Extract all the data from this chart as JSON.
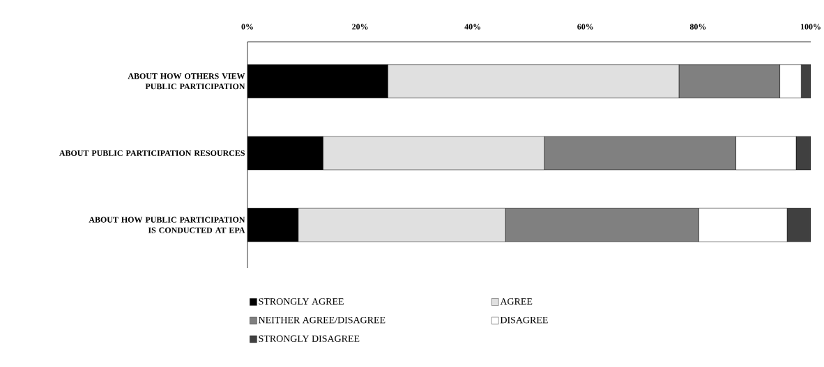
{
  "chart_data": {
    "type": "bar",
    "orientation": "horizontal",
    "stacked": true,
    "categories": [
      "ABOUT HOW OTHERS VIEW PUBLIC PARTICIPATION",
      "ABOUT PUBLIC PARTICIPATION RESOURCES",
      "ABOUT HOW PUBLIC PARTICIPATION IS CONDUCTED AT EPA"
    ],
    "series": [
      {
        "name": "STRONGLY AGREE",
        "color": "#000000",
        "values": [
          24.9,
          13.4,
          9.0
        ]
      },
      {
        "name": "AGREE",
        "color": "#e0e0e0",
        "values": [
          51.7,
          39.3,
          36.8
        ]
      },
      {
        "name": "NEITHER AGREE/DISAGREE",
        "color": "#808080",
        "values": [
          17.9,
          34.0,
          34.3
        ]
      },
      {
        "name": "DISAGREE",
        "color": "#ffffff",
        "values": [
          3.8,
          10.7,
          15.7
        ]
      },
      {
        "name": "STRONGLY DISAGREE",
        "color": "#404040",
        "values": [
          1.7,
          2.6,
          4.2
        ]
      }
    ],
    "xlim": [
      0,
      100
    ],
    "xticks": [
      {
        "value": 0,
        "label": "0%"
      },
      {
        "value": 20,
        "label": "20%"
      },
      {
        "value": 40,
        "label": "40%"
      },
      {
        "value": 60,
        "label": "60%"
      },
      {
        "value": 80,
        "label": "80%"
      },
      {
        "value": 100,
        "label": "100%"
      }
    ],
    "legend": "bottom"
  }
}
